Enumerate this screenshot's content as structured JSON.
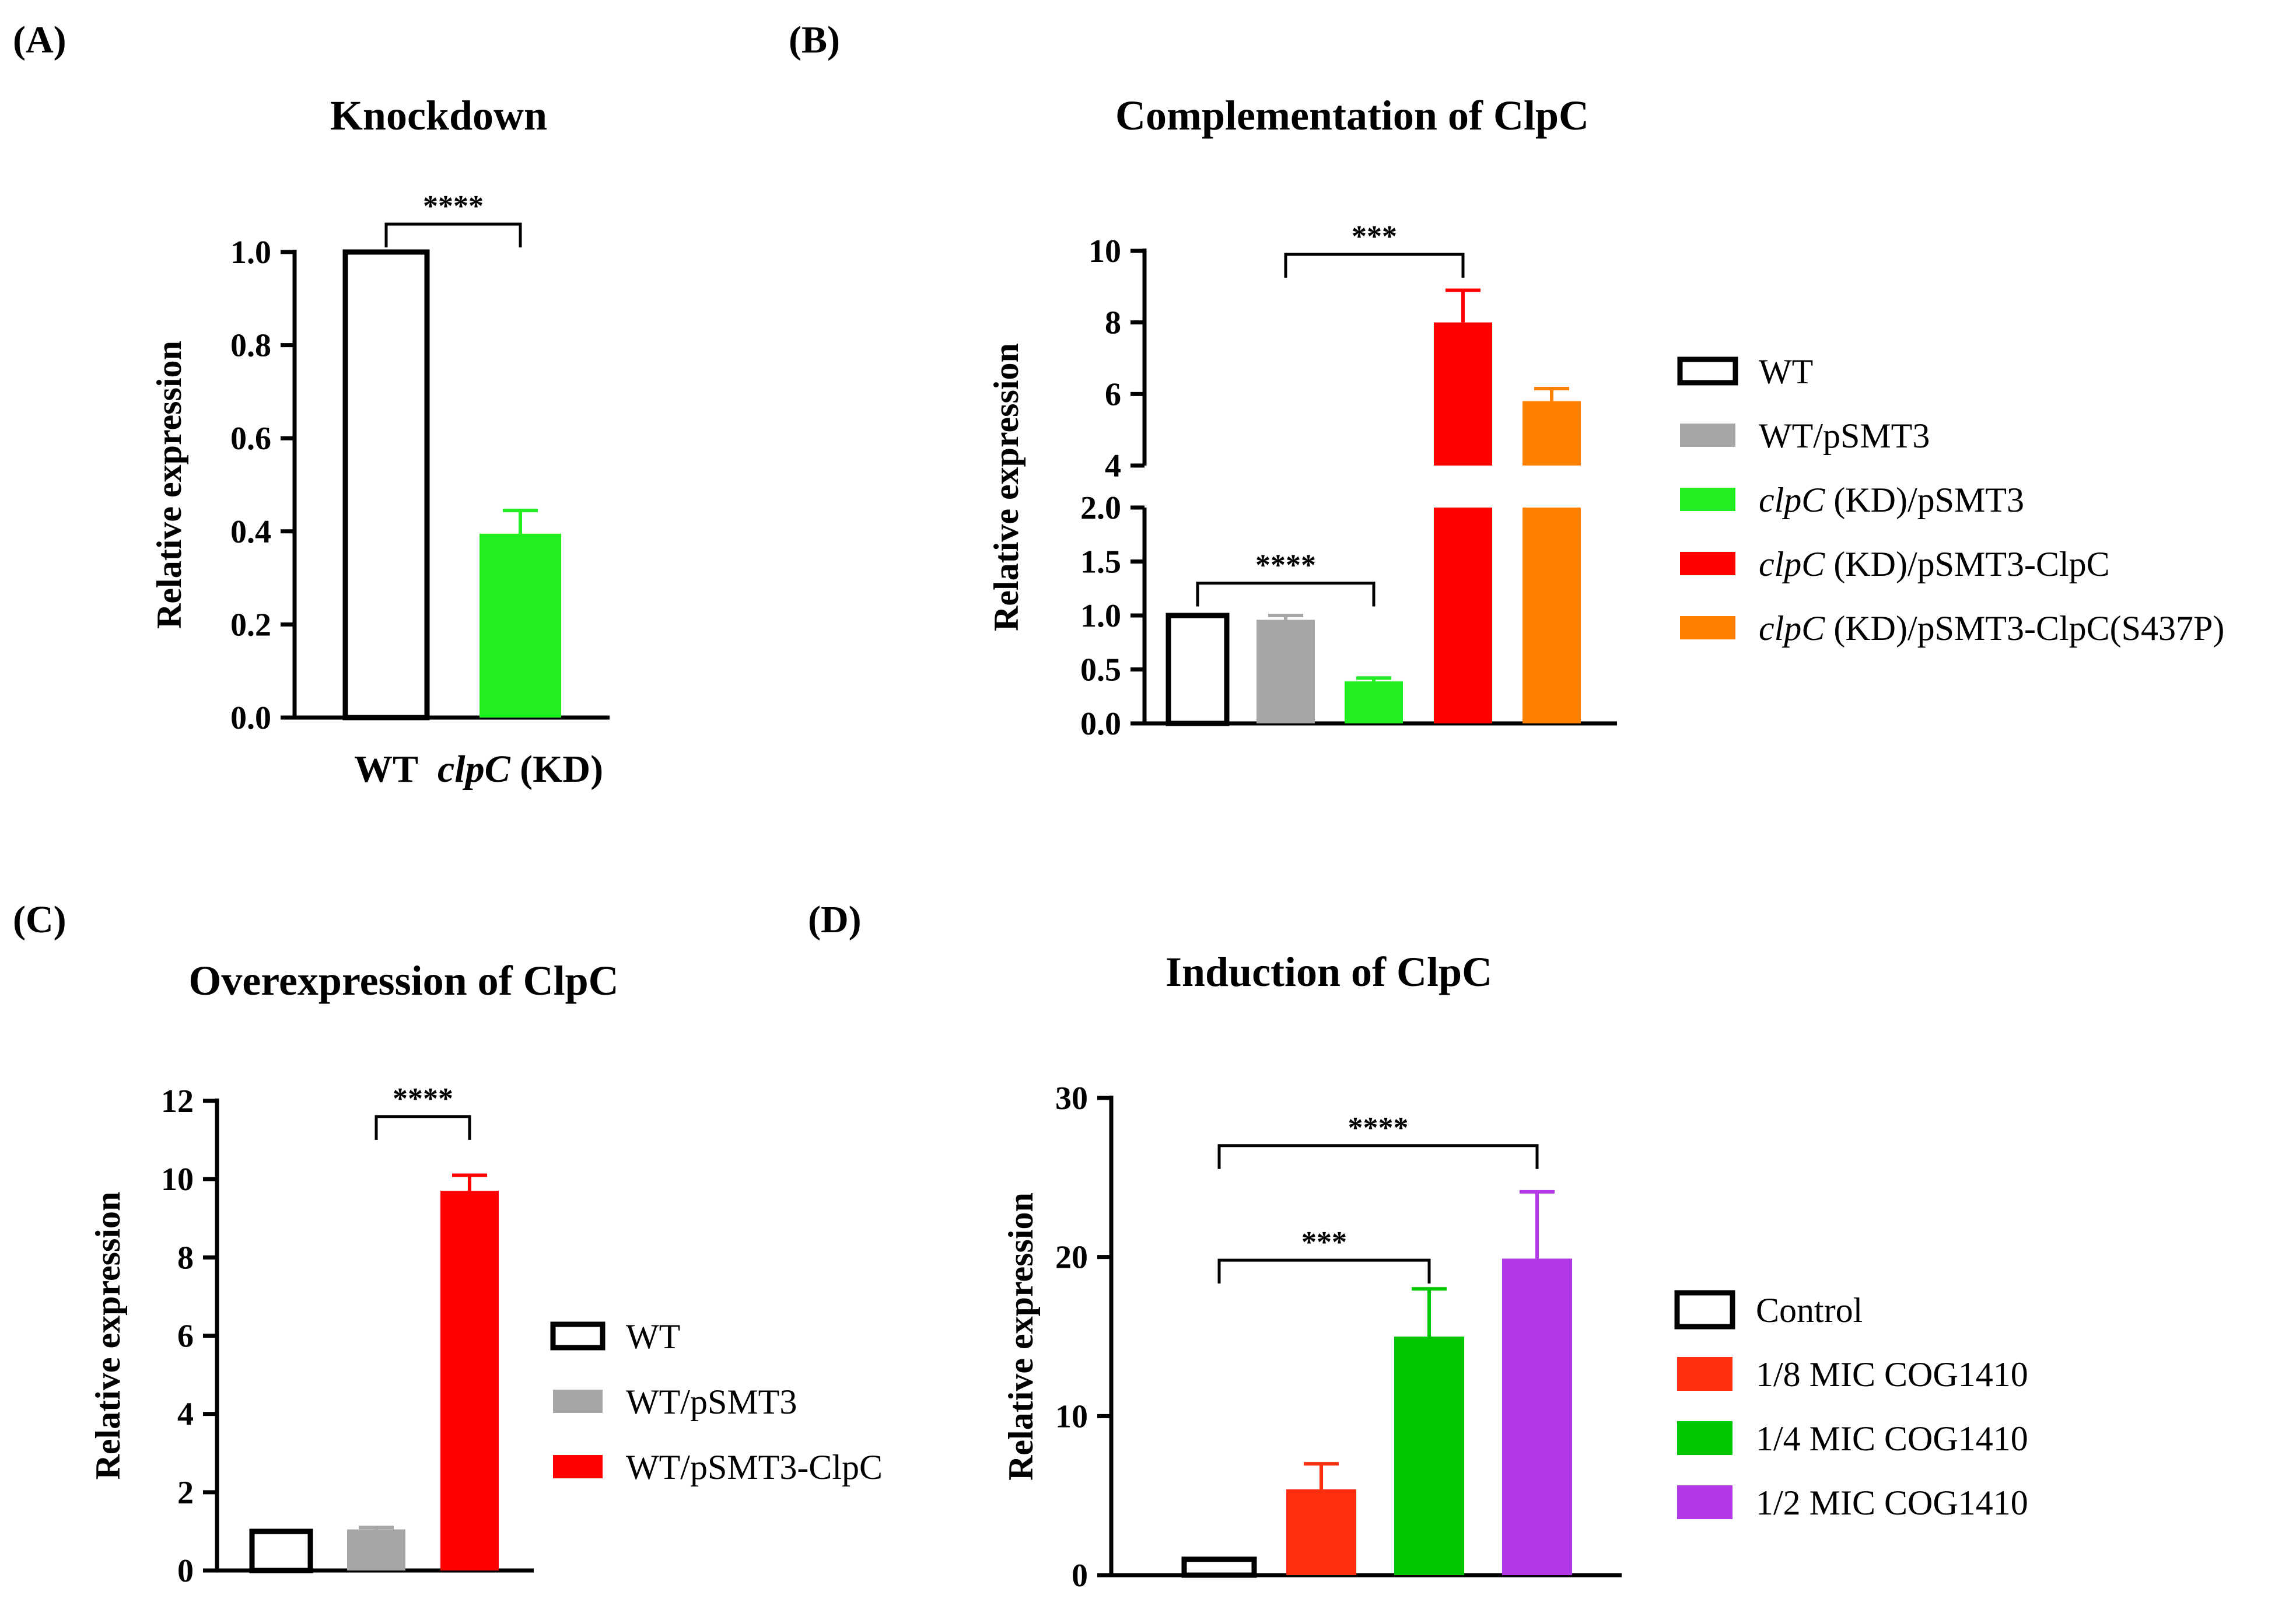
{
  "colors": {
    "axis": "#000000",
    "white": "#ffffff",
    "gray": "#a6a6a6",
    "green_light": "#22ee22",
    "red": "#ff0000",
    "orange": "#ff8000",
    "orange_red": "#ff3010",
    "green": "#00c800",
    "purple": "#b238e8"
  },
  "chart_data": [
    {
      "id": "A",
      "panel_label": "(A)",
      "type": "bar",
      "title": "Knockdown",
      "ylabel": "Relative expression",
      "xlabel": "",
      "ylim": [
        0,
        1.0
      ],
      "yticks": [
        "0.0",
        "0.2",
        "0.4",
        "0.6",
        "0.8",
        "1.0"
      ],
      "categories": [
        {
          "label": "WT",
          "label_italic": "",
          "label_suffix": ""
        },
        {
          "label": "",
          "label_italic": "clpC",
          "label_suffix": " (KD)"
        }
      ],
      "values": [
        1.0,
        0.395
      ],
      "errors": [
        0,
        0.05
      ],
      "fills": [
        "white",
        "green_light"
      ],
      "significance": [
        {
          "from": 0,
          "to": 1,
          "label": "****",
          "y": 1.06
        }
      ]
    },
    {
      "id": "B",
      "panel_label": "(B)",
      "type": "bar",
      "title": "Complementation of ClpC",
      "ylabel": "Relative expression",
      "xlabel": "",
      "axis_break": true,
      "ylim_lower": [
        0,
        2.0
      ],
      "yticks_lower": [
        "0.0",
        "0.5",
        "1.0",
        "1.5",
        "2.0"
      ],
      "ylim_upper": [
        4,
        10
      ],
      "yticks_upper": [
        "4",
        "6",
        "8",
        "10"
      ],
      "categories": [
        "WT",
        "WT/pSMT3",
        "clpC (KD)/pSMT3",
        "clpC (KD)/pSMT3-ClpC",
        "clpC (KD)/pSMT3-ClpC(S437P)"
      ],
      "values": [
        1.0,
        0.96,
        0.39,
        8.0,
        5.8
      ],
      "errors": [
        0,
        0.04,
        0.03,
        0.9,
        0.35
      ],
      "fills": [
        "white",
        "gray",
        "green_light",
        "red",
        "orange"
      ],
      "significance": [
        {
          "from": 0,
          "to": 2,
          "label": "****",
          "y": 1.3,
          "segment": "lower"
        },
        {
          "from": 1,
          "to": 3,
          "label": "***",
          "y": 10.0,
          "segment": "upper"
        }
      ],
      "legend": [
        {
          "italic": "",
          "text": "WT",
          "fill": "white"
        },
        {
          "italic": "",
          "text": "WT/pSMT3",
          "fill": "gray"
        },
        {
          "italic": "clpC",
          "text": " (KD)/pSMT3",
          "fill": "green_light"
        },
        {
          "italic": "clpC",
          "text": " (KD)/pSMT3-ClpC",
          "fill": "red"
        },
        {
          "italic": "clpC",
          "text": " (KD)/pSMT3-ClpC(S437P)",
          "fill": "orange"
        }
      ]
    },
    {
      "id": "C",
      "panel_label": "(C)",
      "type": "bar",
      "title": "Overexpression of ClpC",
      "ylabel": "Relative expression",
      "xlabel": "",
      "ylim": [
        0,
        12
      ],
      "yticks": [
        "0",
        "2",
        "4",
        "6",
        "8",
        "10",
        "12"
      ],
      "categories": [
        "WT",
        "WT/pSMT3",
        "WT/pSMT3-ClpC"
      ],
      "values": [
        1.0,
        1.05,
        9.7
      ],
      "errors": [
        0,
        0.05,
        0.4
      ],
      "fills": [
        "white",
        "gray",
        "red"
      ],
      "significance": [
        {
          "from": 1,
          "to": 2,
          "label": "****",
          "y": 11.6
        }
      ],
      "legend": [
        {
          "italic": "",
          "text": "WT",
          "fill": "white"
        },
        {
          "italic": "",
          "text": "WT/pSMT3",
          "fill": "gray"
        },
        {
          "italic": "",
          "text": "WT/pSMT3-ClpC",
          "fill": "red"
        }
      ]
    },
    {
      "id": "D",
      "panel_label": "(D)",
      "type": "bar",
      "title": "Induction of ClpC",
      "ylabel": "Relative expression",
      "xlabel": "",
      "ylim": [
        0,
        30
      ],
      "yticks": [
        "0",
        "10",
        "20",
        "30"
      ],
      "categories": [
        "Control",
        "1/8 MIC COG1410",
        "1/4 MIC COG1410",
        "1/2 MIC COG1410"
      ],
      "values": [
        1.0,
        5.4,
        15.0,
        19.9
      ],
      "errors": [
        0,
        1.6,
        3.0,
        4.2
      ],
      "fills": [
        "white",
        "orange_red",
        "green",
        "purple"
      ],
      "significance": [
        {
          "from": 0,
          "to": 2,
          "label": "***",
          "y": 19.8
        },
        {
          "from": 0,
          "to": 3,
          "label": "****",
          "y": 27.0
        }
      ],
      "legend": [
        {
          "italic": "",
          "text": "Control",
          "fill": "white"
        },
        {
          "italic": "",
          "text": "1/8 MIC COG1410",
          "fill": "orange_red"
        },
        {
          "italic": "",
          "text": "1/4 MIC COG1410",
          "fill": "green"
        },
        {
          "italic": "",
          "text": "1/2 MIC COG1410",
          "fill": "purple"
        }
      ]
    }
  ]
}
